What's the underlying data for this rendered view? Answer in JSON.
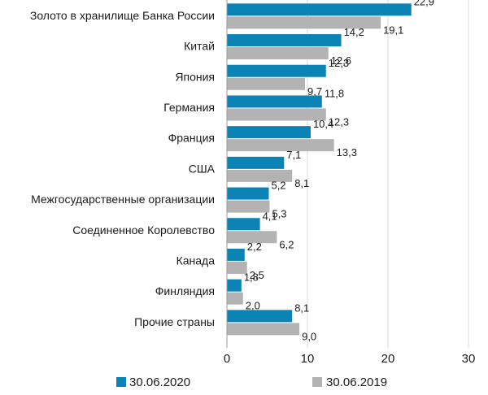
{
  "chart_data": {
    "type": "bar",
    "orientation": "horizontal",
    "categories": [
      "Золото в хранилище Банка России",
      "Китай",
      "Япония",
      "Германия",
      "Франция",
      "США",
      "Межгосударственные организации",
      "Соединенное Королевство",
      "Канада",
      "Финляндия",
      "Прочие страны"
    ],
    "series": [
      {
        "name": "30.06.2020",
        "color": "#0c83b5",
        "values": [
          22.9,
          14.2,
          12.3,
          11.8,
          10.4,
          7.1,
          5.2,
          4.1,
          2.2,
          1.8,
          8.1
        ],
        "labels": [
          "22,9",
          "14,2",
          "12,3",
          "11,8",
          "10,4",
          "7,1",
          "5,2",
          "4,1",
          "2,2",
          "1,8",
          "8,1"
        ]
      },
      {
        "name": "30.06.2019",
        "color": "#b3b3b3",
        "values": [
          19.1,
          12.6,
          9.7,
          12.3,
          13.3,
          8.1,
          5.3,
          6.2,
          2.5,
          2.0,
          9.0
        ],
        "labels": [
          "19,1",
          "12,6",
          "9,7",
          "12,3",
          "13,3",
          "8,1",
          "5,3",
          "6,2",
          "2,5",
          "2,0",
          "9,0"
        ]
      }
    ],
    "xlim": [
      0,
      30
    ],
    "xticks": [
      0,
      10,
      20,
      30
    ],
    "xtick_labels": [
      "0",
      "10",
      "20",
      "30"
    ],
    "grid": "vertical",
    "legend": "bottom"
  }
}
